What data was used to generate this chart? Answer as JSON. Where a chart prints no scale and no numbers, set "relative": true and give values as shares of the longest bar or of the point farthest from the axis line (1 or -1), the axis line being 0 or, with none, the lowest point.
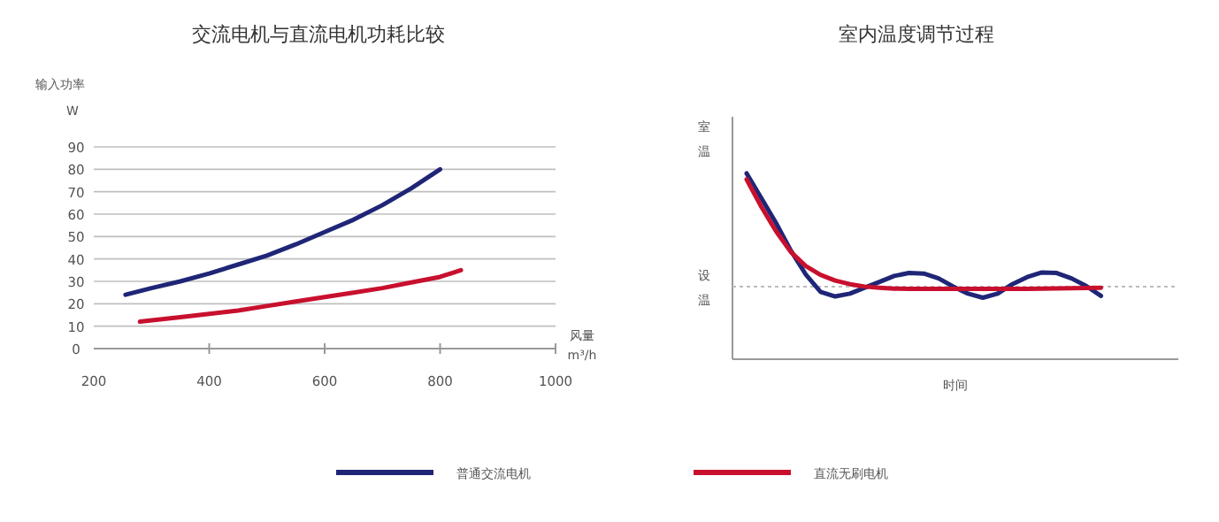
{
  "chart_data": [
    {
      "type": "line",
      "title": "交流电机与直流电机功耗比较",
      "ylabel": "输入功率\nW",
      "xlabel": "风量\nm³/h",
      "xlim": [
        200,
        1000
      ],
      "xticks": [
        200,
        400,
        600,
        800,
        1000
      ],
      "ylim": [
        0,
        90
      ],
      "yticks": [
        0,
        10,
        20,
        30,
        40,
        50,
        60,
        70,
        80,
        90
      ],
      "grid": "y",
      "legend": "bottom",
      "series": [
        {
          "name": "普通交流电机",
          "color": "#1f2677",
          "x": [
            255,
            300,
            350,
            400,
            450,
            500,
            550,
            600,
            650,
            700,
            750,
            800
          ],
          "values": [
            24,
            27,
            30,
            33.5,
            37.5,
            41.5,
            46.5,
            52,
            57.5,
            64,
            71.5,
            80
          ]
        },
        {
          "name": "直流无刷电机",
          "color": "#c8102e",
          "x": [
            280,
            350,
            400,
            450,
            500,
            550,
            600,
            650,
            700,
            750,
            800,
            836
          ],
          "values": [
            12,
            14,
            15.5,
            17,
            19,
            21,
            23,
            25,
            27,
            29.5,
            32,
            35
          ]
        }
      ]
    },
    {
      "type": "line",
      "title": "室内温度调节过程",
      "ylabel": "室温",
      "xlabel": "时间",
      "relative": true,
      "categories": [
        null,
        null,
        null,
        null,
        null,
        null,
        null,
        null,
        null,
        null,
        null,
        null,
        null,
        null,
        null,
        null,
        null,
        null,
        null,
        null,
        null,
        null,
        null,
        null,
        null,
        null,
        null,
        null,
        null,
        null
      ],
      "ref_lines": [
        {
          "axis": "y",
          "value": 0.39,
          "label": "设温",
          "color": "#bbbbbb",
          "line_style": "dotted"
        }
      ],
      "series": [
        {
          "color": "#1f2677",
          "values": [
            1.0,
            0.867,
            0.732,
            0.584,
            0.457,
            0.363,
            0.338,
            0.353,
            0.385,
            0.416,
            0.448,
            0.464,
            0.461,
            0.435,
            0.391,
            0.353,
            0.331,
            0.353,
            0.404,
            0.442,
            0.467,
            0.464,
            0.435,
            0.394,
            0.341,
            null,
            null,
            null,
            null,
            null
          ]
        },
        {
          "color": "#c8102e",
          "values": [
            0.968,
            0.82,
            0.688,
            0.577,
            0.502,
            0.454,
            0.423,
            0.404,
            0.391,
            0.385,
            0.38,
            0.379,
            0.378,
            0.378,
            0.378,
            0.378,
            0.378,
            0.378,
            0.378,
            0.379,
            0.38,
            0.381,
            0.382,
            0.383,
            0.385,
            null,
            null,
            null,
            null,
            null
          ]
        }
      ]
    }
  ]
}
